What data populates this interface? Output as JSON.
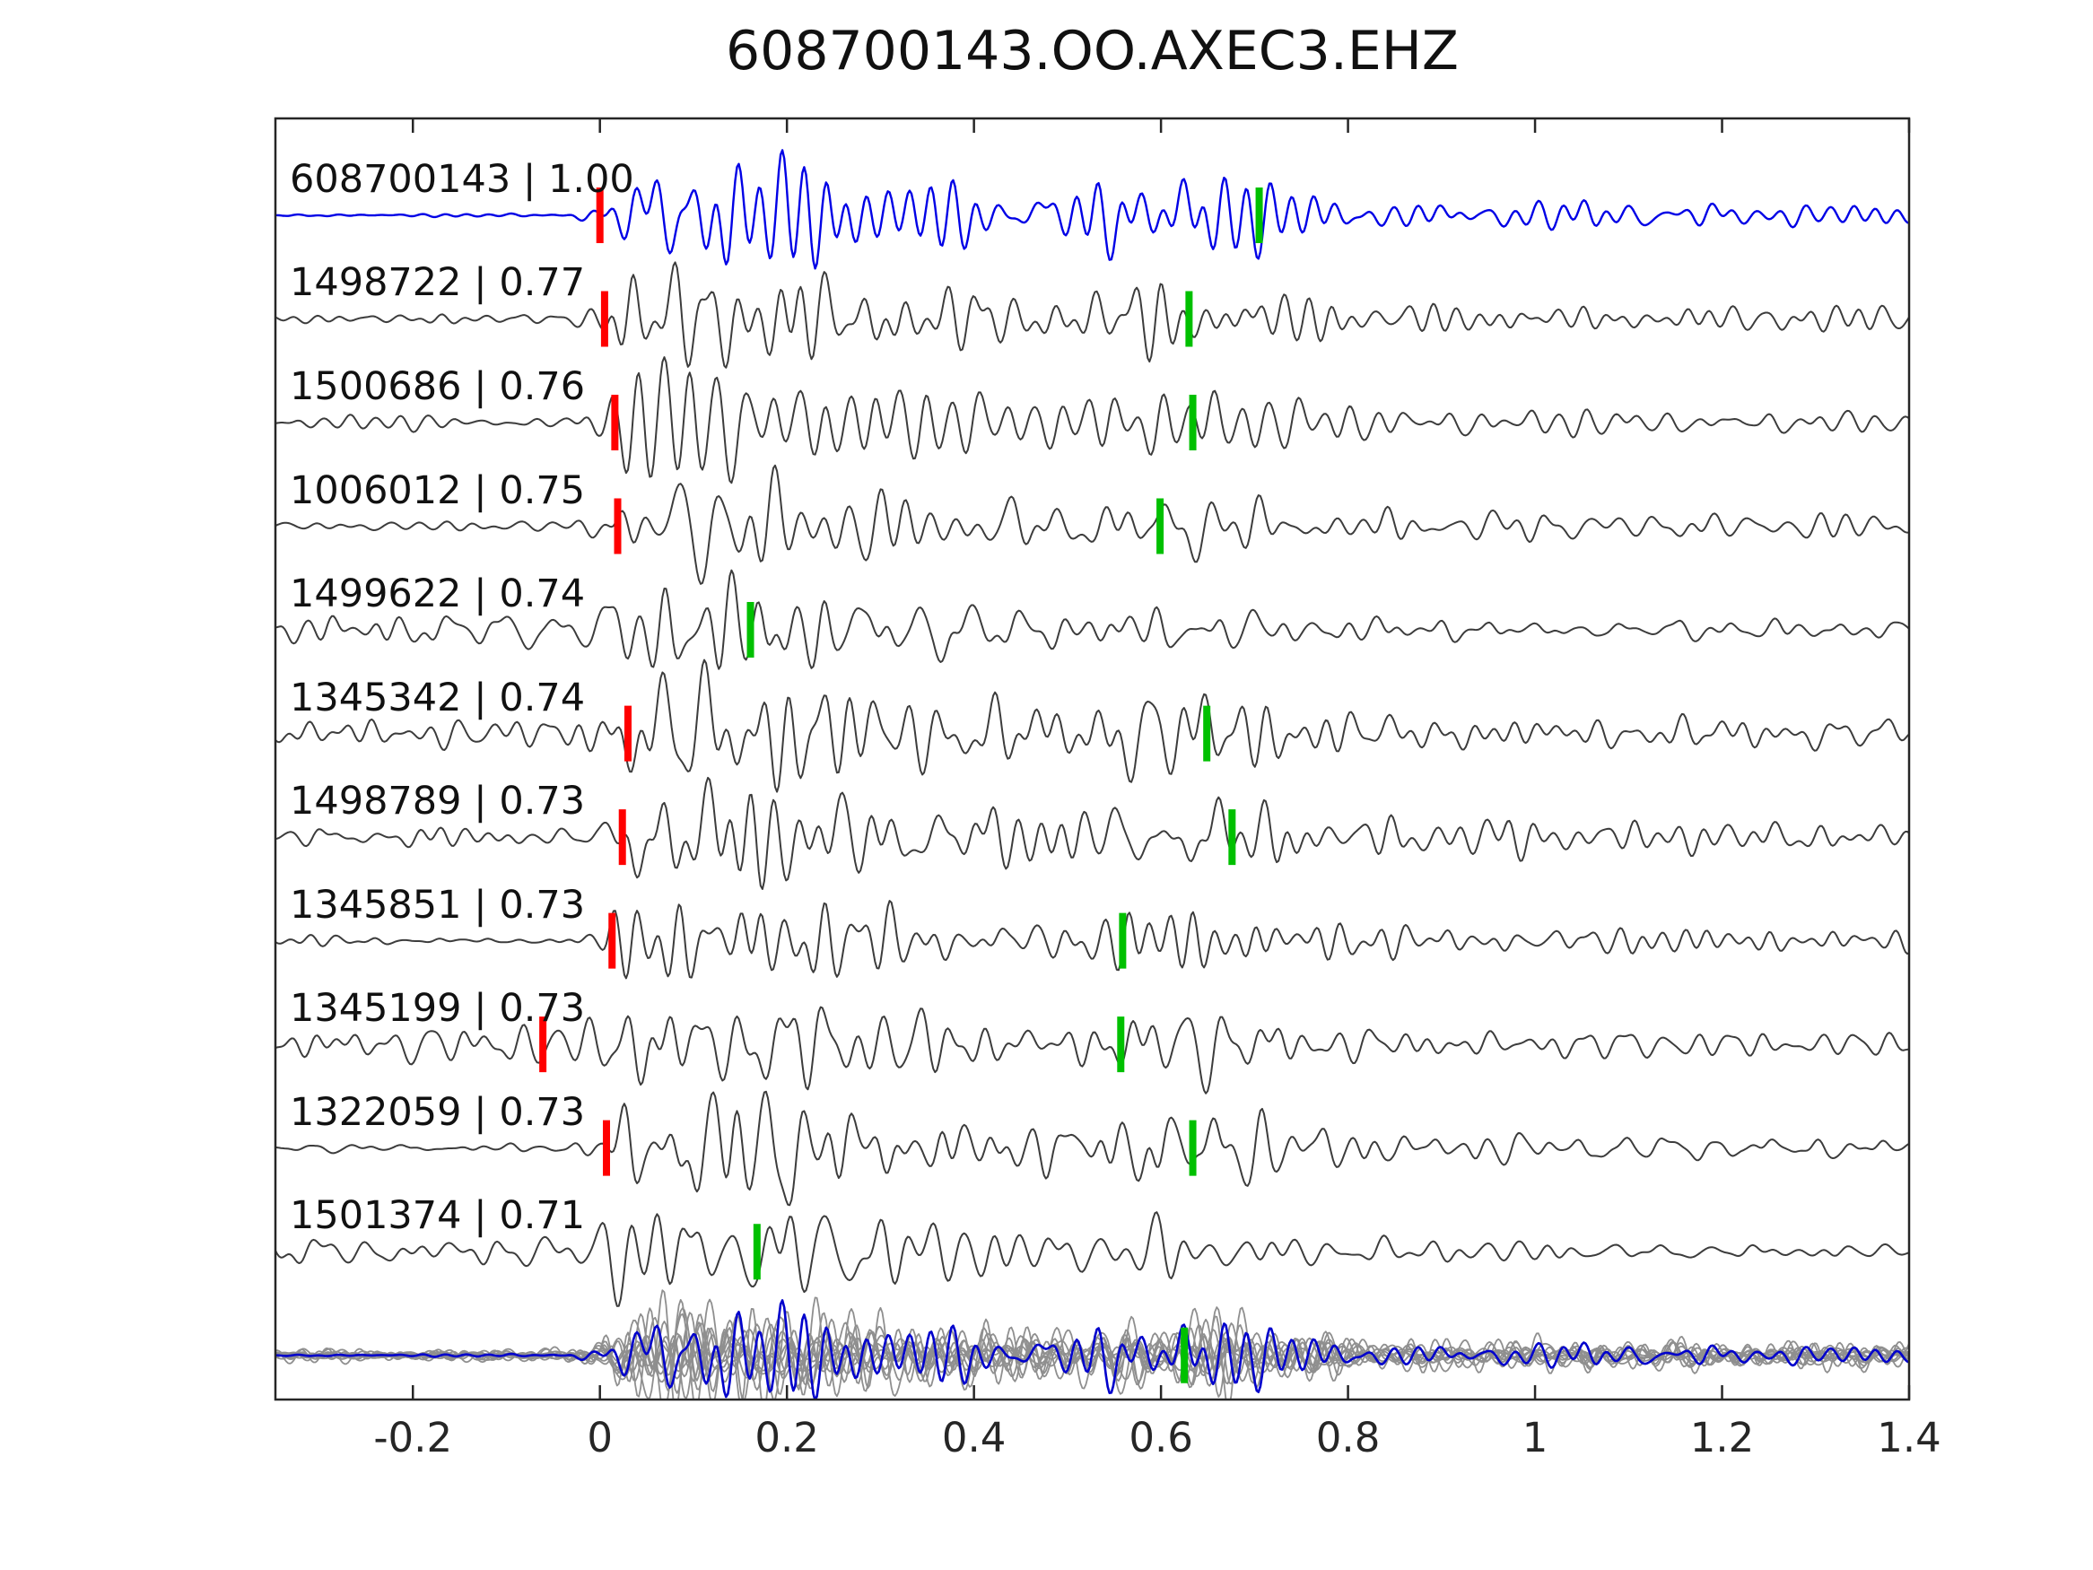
{
  "figure": {
    "title": "608700143.OO.AXEC3.EHZ"
  },
  "chart_data": {
    "type": "line",
    "title": "608700143.OO.AXEC3.EHZ",
    "xlabel": "",
    "ylabel": "",
    "xlim": [
      -0.347,
      1.4
    ],
    "x_ticks": [
      -0.2,
      0,
      0.2,
      0.4,
      0.6,
      0.8,
      1,
      1.2,
      1.4
    ],
    "x_tick_labels": [
      "-0.2",
      "0",
      "0.2",
      "0.4",
      "0.6",
      "0.8",
      "1",
      "1.2",
      "1.4"
    ],
    "grid": false,
    "legend": null,
    "colors": {
      "template_trace": "#0000e6",
      "detection_trace": "#3c3c3c",
      "stack_traces": "#8f8f8f",
      "stack_template": "#0000cc",
      "pick_red": "#ff0000",
      "pick_green": "#00c000",
      "axes": "#262626",
      "text": "#1a1a1a"
    },
    "traces": [
      {
        "id": "608700143",
        "correlation": 1.0,
        "label": "608700143 | 1.00",
        "role": "template",
        "red_pick": 0.0,
        "green_pick": 0.705,
        "pre_noise": 0.03
      },
      {
        "id": "1498722",
        "correlation": 0.77,
        "label": "1498722 | 0.77",
        "role": "detection",
        "red_pick": 0.005,
        "green_pick": 0.63,
        "pre_noise": 0.08
      },
      {
        "id": "1500686",
        "correlation": 0.76,
        "label": "1500686 | 0.76",
        "role": "detection",
        "red_pick": 0.016,
        "green_pick": 0.634,
        "pre_noise": 0.1
      },
      {
        "id": "1006012",
        "correlation": 0.75,
        "label": "1006012 | 0.75",
        "role": "detection",
        "red_pick": 0.019,
        "green_pick": 0.599,
        "pre_noise": 0.08
      },
      {
        "id": "1499622",
        "correlation": 0.74,
        "label": "1499622 | 0.74",
        "role": "detection",
        "red_pick": null,
        "green_pick": 0.161,
        "pre_noise": 0.3
      },
      {
        "id": "1345342",
        "correlation": 0.74,
        "label": "1345342 | 0.74",
        "role": "detection",
        "red_pick": 0.03,
        "green_pick": 0.649,
        "pre_noise": 0.22
      },
      {
        "id": "1498789",
        "correlation": 0.73,
        "label": "1498789 | 0.73",
        "role": "detection",
        "red_pick": 0.024,
        "green_pick": 0.676,
        "pre_noise": 0.16
      },
      {
        "id": "1345851",
        "correlation": 0.73,
        "label": "1345851 | 0.73",
        "role": "detection",
        "red_pick": 0.013,
        "green_pick": 0.559,
        "pre_noise": 0.1
      },
      {
        "id": "1345199",
        "correlation": 0.73,
        "label": "1345199 | 0.73",
        "role": "detection",
        "red_pick": -0.061,
        "green_pick": 0.557,
        "pre_noise": 0.34
      },
      {
        "id": "1322059",
        "correlation": 0.73,
        "label": "1322059 | 0.73",
        "role": "detection",
        "red_pick": 0.007,
        "green_pick": 0.634,
        "pre_noise": 0.08
      },
      {
        "id": "1501374",
        "correlation": 0.71,
        "label": "1501374 | 0.71",
        "role": "detection",
        "red_pick": null,
        "green_pick": 0.168,
        "pre_noise": 0.3
      }
    ],
    "stack_row": {
      "green_pick": 0.625,
      "n_overlaid": 11
    }
  }
}
